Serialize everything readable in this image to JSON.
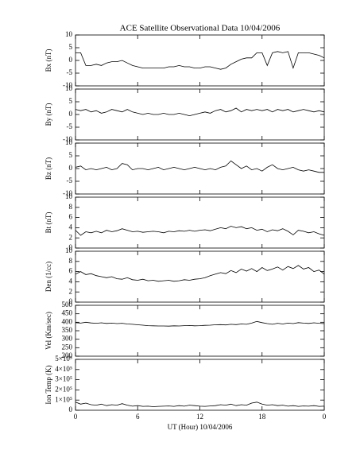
{
  "chart_data": [
    {
      "type": "line",
      "title": "ACE Satellite Observational Data   10/04/2006",
      "ylabel": "Bx (nT)",
      "color": "#000000",
      "x": [
        0,
        0.5,
        1,
        1.5,
        2,
        2.5,
        3,
        3.5,
        4,
        4.5,
        5,
        5.5,
        6,
        6.5,
        7,
        7.5,
        8,
        8.5,
        9,
        9.5,
        10,
        10.5,
        11,
        11.5,
        12,
        12.5,
        13,
        13.5,
        14,
        14.5,
        15,
        15.5,
        16,
        16.5,
        17,
        17.5,
        18,
        18.5,
        19,
        19.5,
        20,
        20.5,
        21,
        21.5,
        22,
        22.5,
        23,
        23.5,
        24
      ],
      "values": [
        3,
        3,
        -2,
        -2,
        -1.5,
        -2,
        -1,
        -0.5,
        -0.5,
        0,
        -1,
        -2,
        -2.5,
        -3,
        -3,
        -3,
        -3,
        -3,
        -2.5,
        -2.5,
        -2,
        -2.5,
        -2.5,
        -3,
        -3,
        -2.5,
        -2.5,
        -3,
        -3.5,
        -3,
        -1.5,
        -0.5,
        0.5,
        1,
        1,
        3,
        3,
        -2,
        3,
        3.5,
        3,
        3.5,
        -3,
        3,
        3,
        3,
        2.5,
        2,
        1
      ],
      "ylim": [
        -10,
        10
      ],
      "yticks": [
        -10,
        -5,
        0,
        5,
        10
      ]
    },
    {
      "type": "line",
      "ylabel": "By (nT)",
      "color": "#000000",
      "x": [
        0,
        0.5,
        1,
        1.5,
        2,
        2.5,
        3,
        3.5,
        4,
        4.5,
        5,
        5.5,
        6,
        6.5,
        7,
        7.5,
        8,
        8.5,
        9,
        9.5,
        10,
        10.5,
        11,
        11.5,
        12,
        12.5,
        13,
        13.5,
        14,
        14.5,
        15,
        15.5,
        16,
        16.5,
        17,
        17.5,
        18,
        18.5,
        19,
        19.5,
        20,
        20.5,
        21,
        21.5,
        22,
        22.5,
        23,
        23.5,
        24
      ],
      "values": [
        2,
        1.5,
        2,
        1,
        1.5,
        0.5,
        1,
        2,
        1.5,
        1,
        2,
        1,
        0.5,
        0,
        0.5,
        0,
        0,
        0.5,
        0,
        0,
        0.5,
        0,
        -0.5,
        0,
        0.5,
        1,
        0.5,
        1.5,
        2,
        1,
        1.5,
        2.5,
        1,
        2,
        1.5,
        2,
        1.5,
        2,
        1,
        2,
        1.5,
        2,
        1,
        1.5,
        2,
        1.5,
        1,
        1.5,
        1
      ],
      "ylim": [
        -10,
        10
      ],
      "yticks": [
        -10,
        -5,
        0,
        5,
        10
      ]
    },
    {
      "type": "line",
      "ylabel": "Bz (nT)",
      "color": "#000000",
      "x": [
        0,
        0.5,
        1,
        1.5,
        2,
        2.5,
        3,
        3.5,
        4,
        4.5,
        5,
        5.5,
        6,
        6.5,
        7,
        7.5,
        8,
        8.5,
        9,
        9.5,
        10,
        10.5,
        11,
        11.5,
        12,
        12.5,
        13,
        13.5,
        14,
        14.5,
        15,
        15.5,
        16,
        16.5,
        17,
        17.5,
        18,
        18.5,
        19,
        19.5,
        20,
        20.5,
        21,
        21.5,
        22,
        22.5,
        23,
        23.5,
        24
      ],
      "values": [
        0.5,
        1,
        -0.5,
        0,
        -0.5,
        0,
        0.5,
        -0.5,
        0,
        2,
        1.5,
        -0.5,
        0,
        0,
        -0.5,
        0,
        0.5,
        -0.5,
        0,
        0.5,
        0,
        -0.5,
        0,
        0.5,
        0,
        -0.5,
        0,
        -0.5,
        0.5,
        1,
        3,
        1.5,
        0,
        1,
        -0.5,
        0,
        -1,
        0.5,
        1.5,
        0,
        -0.5,
        0,
        0.5,
        -0.5,
        -1,
        -0.5,
        -1,
        -1.5,
        -1.5
      ],
      "ylim": [
        -10,
        10
      ],
      "yticks": [
        -10,
        -5,
        0,
        5,
        10
      ]
    },
    {
      "type": "line",
      "ylabel": "Bt (nT)",
      "color": "#000000",
      "x": [
        0,
        0.5,
        1,
        1.5,
        2,
        2.5,
        3,
        3.5,
        4,
        4.5,
        5,
        5.5,
        6,
        6.5,
        7,
        7.5,
        8,
        8.5,
        9,
        9.5,
        10,
        10.5,
        11,
        11.5,
        12,
        12.5,
        13,
        13.5,
        14,
        14.5,
        15,
        15.5,
        16,
        16.5,
        17,
        17.5,
        18,
        18.5,
        19,
        19.5,
        20,
        20.5,
        21,
        21.5,
        22,
        22.5,
        23,
        23.5,
        24
      ],
      "values": [
        3.5,
        2.5,
        3.2,
        3,
        3.3,
        3,
        3.5,
        3.2,
        3.4,
        3.8,
        3.5,
        3.2,
        3.3,
        3.1,
        3.2,
        3.3,
        3.2,
        3,
        3.3,
        3.2,
        3.4,
        3.3,
        3.5,
        3.3,
        3.5,
        3.6,
        3.4,
        3.7,
        4,
        3.8,
        4.3,
        4,
        4.2,
        3.8,
        4,
        3.5,
        3.7,
        3.2,
        3.6,
        3.4,
        3.8,
        3.3,
        2.6,
        3.5,
        3.3,
        3,
        3.2,
        2.8,
        2.5
      ],
      "ylim": [
        0,
        10
      ],
      "yticks": [
        0,
        2,
        4,
        6,
        8,
        10
      ]
    },
    {
      "type": "line",
      "ylabel": "Den (1/cc)",
      "color": "#000000",
      "x": [
        0,
        0.5,
        1,
        1.5,
        2,
        2.5,
        3,
        3.5,
        4,
        4.5,
        5,
        5.5,
        6,
        6.5,
        7,
        7.5,
        8,
        8.5,
        9,
        9.5,
        10,
        10.5,
        11,
        11.5,
        12,
        12.5,
        13,
        13.5,
        14,
        14.5,
        15,
        15.5,
        16,
        16.5,
        17,
        17.5,
        18,
        18.5,
        19,
        19.5,
        20,
        20.5,
        21,
        21.5,
        22,
        22.5,
        23,
        23.5,
        24
      ],
      "values": [
        5.5,
        6,
        5.4,
        5.6,
        5.2,
        5,
        4.8,
        5,
        4.6,
        4.5,
        4.8,
        4.4,
        4.3,
        4.5,
        4.2,
        4.3,
        4.1,
        4.2,
        4.3,
        4.1,
        4.2,
        4.4,
        4.3,
        4.5,
        4.6,
        4.8,
        5.2,
        5.5,
        5.8,
        5.6,
        6.2,
        5.8,
        6.5,
        6.1,
        6.6,
        6,
        6.8,
        6.2,
        6.5,
        6.9,
        6.3,
        7,
        6.6,
        7.2,
        6.5,
        6.8,
        6,
        6.3,
        5.5
      ],
      "ylim": [
        0,
        10
      ],
      "yticks": [
        0,
        2,
        4,
        6,
        8,
        10
      ]
    },
    {
      "type": "line",
      "ylabel": "Vel (Km/sec)",
      "color": "#000000",
      "x": [
        0,
        0.5,
        1,
        1.5,
        2,
        2.5,
        3,
        3.5,
        4,
        4.5,
        5,
        5.5,
        6,
        6.5,
        7,
        7.5,
        8,
        8.5,
        9,
        9.5,
        10,
        10.5,
        11,
        11.5,
        12,
        12.5,
        13,
        13.5,
        14,
        14.5,
        15,
        15.5,
        16,
        16.5,
        17,
        17.5,
        18,
        18.5,
        19,
        19.5,
        20,
        20.5,
        21,
        21.5,
        22,
        22.5,
        23,
        23.5,
        24
      ],
      "values": [
        398,
        395,
        400,
        396,
        394,
        397,
        393,
        395,
        392,
        394,
        390,
        388,
        385,
        383,
        380,
        379,
        378,
        378,
        377,
        379,
        378,
        380,
        381,
        379,
        380,
        382,
        383,
        385,
        386,
        384,
        388,
        386,
        390,
        388,
        395,
        405,
        398,
        392,
        388,
        394,
        390,
        395,
        392,
        398,
        395,
        393,
        397,
        394,
        392
      ],
      "ylim": [
        200,
        500
      ],
      "yticks": [
        200,
        250,
        300,
        350,
        400,
        450,
        500
      ]
    },
    {
      "type": "line",
      "ylabel": "Ion Temp (K)",
      "color": "#000000",
      "x": [
        0,
        0.5,
        1,
        1.5,
        2,
        2.5,
        3,
        3.5,
        4,
        4.5,
        5,
        5.5,
        6,
        6.5,
        7,
        7.5,
        8,
        8.5,
        9,
        9.5,
        10,
        10.5,
        11,
        11.5,
        12,
        12.5,
        13,
        13.5,
        14,
        14.5,
        15,
        15.5,
        16,
        16.5,
        17,
        17.5,
        18,
        18.5,
        19,
        19.5,
        20,
        20.5,
        21,
        21.5,
        22,
        22.5,
        23,
        23.5,
        24
      ],
      "values": [
        80000,
        60000,
        70000,
        55000,
        50000,
        60000,
        45000,
        55000,
        50000,
        65000,
        50000,
        40000,
        45000,
        38000,
        40000,
        35000,
        38000,
        40000,
        42000,
        38000,
        45000,
        40000,
        50000,
        45000,
        40000,
        38000,
        42000,
        45000,
        55000,
        50000,
        60000,
        45000,
        55000,
        50000,
        70000,
        80000,
        60000,
        50000,
        55000,
        45000,
        50000,
        40000,
        45000,
        38000,
        42000,
        40000,
        45000,
        38000,
        40000
      ],
      "ylim": [
        0,
        500000
      ],
      "yticks": [
        {
          "value": 0,
          "label": "0"
        },
        {
          "value": 100000,
          "label": "1×10⁵"
        },
        {
          "value": 200000,
          "label": "2×10⁵"
        },
        {
          "value": 300000,
          "label": "3×10⁵"
        },
        {
          "value": 400000,
          "label": "4×10⁵"
        },
        {
          "value": 500000,
          "label": "5×10⁵"
        }
      ],
      "xlabel": "UT (Hour)   10/04/2006",
      "xlim": [
        0,
        24
      ],
      "xticks": [
        0,
        6,
        12,
        18,
        {
          "value": 24,
          "label": "0"
        }
      ]
    }
  ]
}
